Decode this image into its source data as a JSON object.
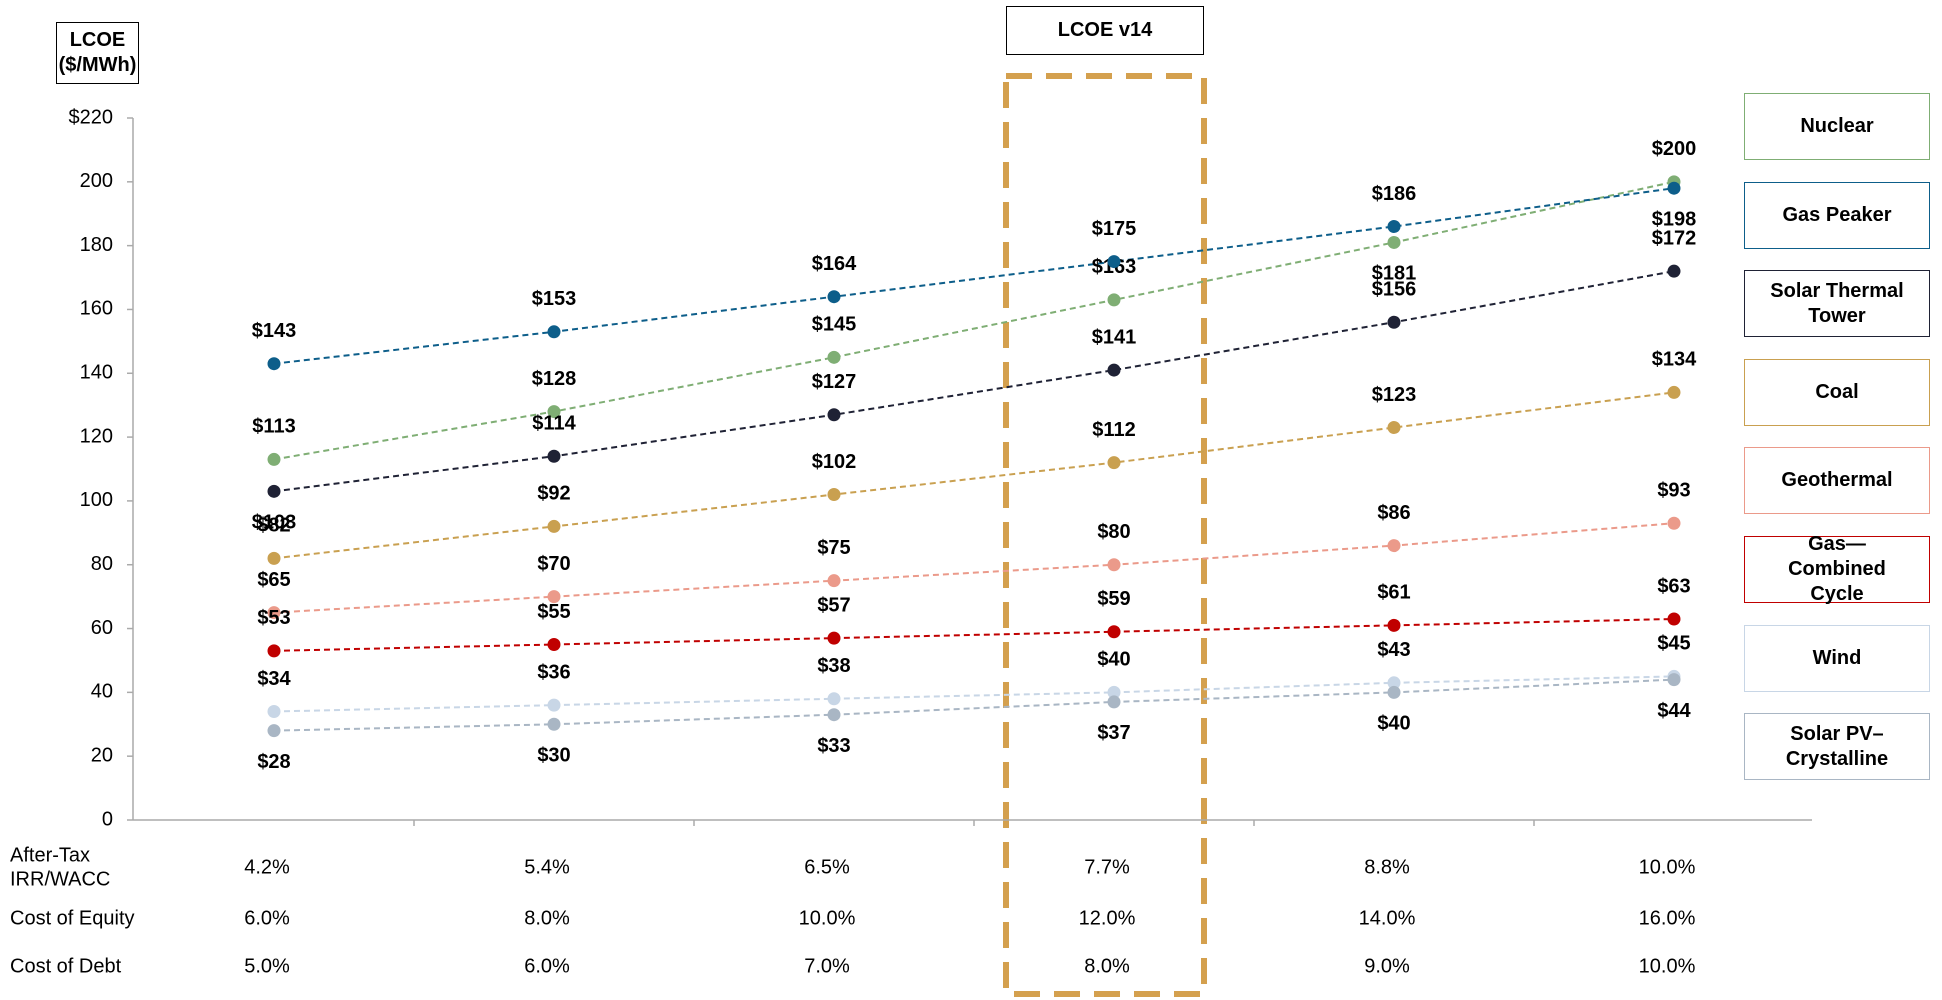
{
  "chart_data": {
    "type": "line",
    "title": "LCOE v14",
    "y_label": "LCOE ($/MWh)",
    "ylim": [
      0,
      220
    ],
    "yticks": [
      0,
      20,
      40,
      60,
      80,
      100,
      120,
      140,
      160,
      180,
      200,
      {
        "value": 220,
        "label": "$220"
      }
    ],
    "grid": false,
    "legend": "right",
    "series": [
      {
        "name": "Nuclear",
        "color": "#7fae74",
        "values": [
          113,
          128,
          145,
          163,
          181,
          200
        ],
        "value_labels": [
          "$113",
          "$128",
          "$145",
          "$163",
          "$181",
          "$200"
        ]
      },
      {
        "name": "Gas Peaker",
        "color": "#0d5e8a",
        "values": [
          143,
          153,
          164,
          175,
          186,
          198
        ],
        "value_labels": [
          "$143",
          "$153",
          "$164",
          "$175",
          "$186",
          "$198"
        ]
      },
      {
        "name": "Solar Thermal Tower",
        "color": "#1f2235",
        "values": [
          103,
          114,
          127,
          141,
          156,
          172
        ],
        "value_labels": [
          "$103",
          "$114",
          "$127",
          "$141",
          "$156",
          "$172"
        ]
      },
      {
        "name": "Coal",
        "color": "#c9a050",
        "values": [
          82,
          92,
          102,
          112,
          123,
          134
        ],
        "value_labels": [
          "$82",
          "$92",
          "$102",
          "$112",
          "$123",
          "$134"
        ]
      },
      {
        "name": "Geothermal",
        "color": "#eb9a8a",
        "values": [
          65,
          70,
          75,
          80,
          86,
          93
        ],
        "value_labels": [
          "$65",
          "$70",
          "$75",
          "$80",
          "$86",
          "$93"
        ]
      },
      {
        "name": "Gas—Combined Cycle",
        "color": "#c00000",
        "values": [
          53,
          55,
          57,
          59,
          61,
          63
        ],
        "value_labels": [
          "$53",
          "$55",
          "$57",
          "$59",
          "$61",
          "$63"
        ]
      },
      {
        "name": "Wind",
        "color": "#c8d6e6",
        "values": [
          34,
          36,
          38,
          40,
          43,
          45
        ],
        "value_labels": [
          "$34",
          "$36",
          "$38",
          "$40",
          "$43",
          "$45"
        ]
      },
      {
        "name": "Solar PV–Crystalline",
        "color": "#a9b6c4",
        "values": [
          28,
          30,
          33,
          37,
          40,
          44
        ],
        "value_labels": [
          "$28",
          "$30",
          "$33",
          "$37",
          "$40",
          "$44"
        ]
      }
    ],
    "table_rows": [
      {
        "label_lines": [
          "After-Tax",
          "IRR/WACC"
        ],
        "values": [
          "4.2%",
          "5.4%",
          "6.5%",
          "7.7%",
          "8.8%",
          "10.0%"
        ]
      },
      {
        "label_lines": [
          "Cost of Equity"
        ],
        "values": [
          "6.0%",
          "8.0%",
          "10.0%",
          "12.0%",
          "14.0%",
          "16.0%"
        ]
      },
      {
        "label_lines": [
          "Cost of Debt"
        ],
        "values": [
          "5.0%",
          "6.0%",
          "7.0%",
          "8.0%",
          "9.0%",
          "10.0%"
        ]
      }
    ]
  }
}
